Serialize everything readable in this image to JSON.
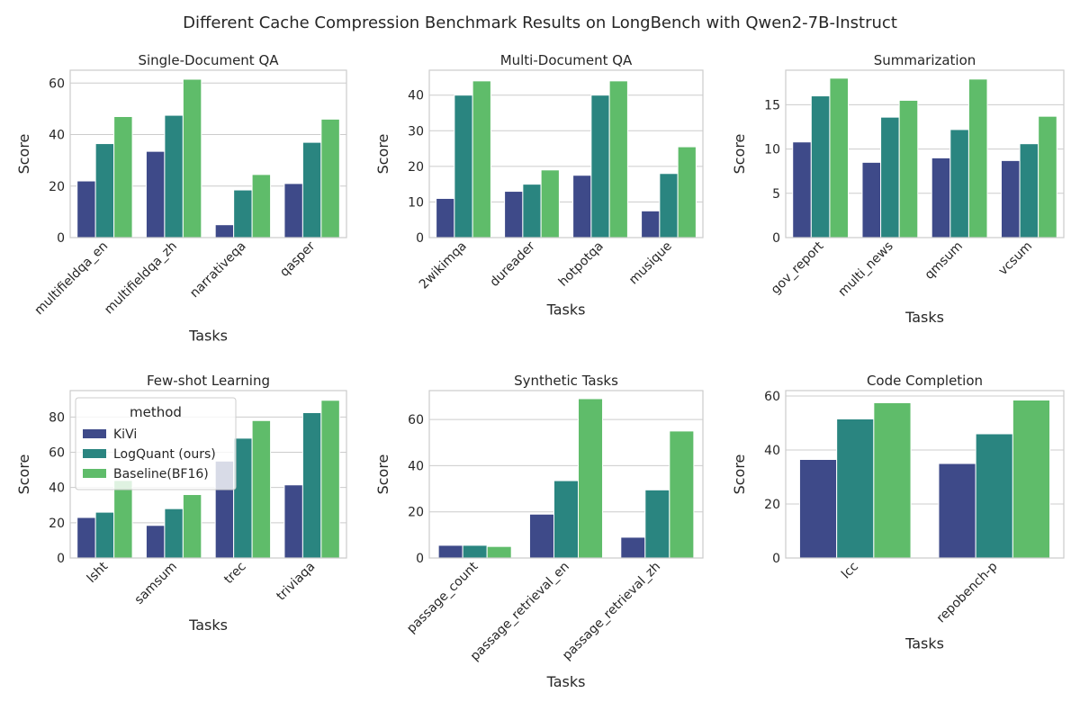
{
  "title": "Different Cache Compression Benchmark Results on LongBench with Qwen2-7B-Instruct",
  "colors": {
    "KiVi": "#3e4a89",
    "LogQuant (ours)": "#2a8580",
    "Baseline(BF16)": "#5fbc6a"
  },
  "legend": {
    "title": "method",
    "placement": "upper-left of Few-shot Learning panel"
  },
  "chart_data": [
    {
      "type": "bar",
      "title": "Single-Document QA",
      "xlabel": "Tasks",
      "ylabel": "Score",
      "ylim": [
        0,
        65
      ],
      "yticks": [
        0,
        20,
        40,
        60
      ],
      "grid": true,
      "categories": [
        "multifieldqa_en",
        "multifieldqa_zh",
        "narrativeqa",
        "qasper"
      ],
      "series": [
        {
          "name": "KiVi",
          "values": [
            22,
            33.5,
            5,
            21
          ]
        },
        {
          "name": "LogQuant (ours)",
          "values": [
            36.5,
            47.5,
            18.5,
            37
          ]
        },
        {
          "name": "Baseline(BF16)",
          "values": [
            47,
            61.5,
            24.5,
            46
          ]
        }
      ]
    },
    {
      "type": "bar",
      "title": "Multi-Document QA",
      "xlabel": "Tasks",
      "ylabel": "Score",
      "ylim": [
        0,
        47
      ],
      "yticks": [
        0,
        10,
        20,
        30,
        40
      ],
      "grid": true,
      "categories": [
        "2wikimqa",
        "dureader",
        "hotpotqa",
        "musique"
      ],
      "series": [
        {
          "name": "KiVi",
          "values": [
            11,
            13,
            17.5,
            7.5
          ]
        },
        {
          "name": "LogQuant (ours)",
          "values": [
            40,
            15,
            40,
            18
          ]
        },
        {
          "name": "Baseline(BF16)",
          "values": [
            44,
            19,
            44,
            25.5
          ]
        }
      ]
    },
    {
      "type": "bar",
      "title": "Summarization",
      "xlabel": "Tasks",
      "ylabel": "Score",
      "ylim": [
        0,
        18.9
      ],
      "yticks": [
        0,
        5,
        10,
        15
      ],
      "grid": true,
      "categories": [
        "gov_report",
        "multi_news",
        "qmsum",
        "vcsum"
      ],
      "series": [
        {
          "name": "KiVi",
          "values": [
            10.8,
            8.5,
            9,
            8.7
          ]
        },
        {
          "name": "LogQuant (ours)",
          "values": [
            16,
            13.6,
            12.2,
            10.6
          ]
        },
        {
          "name": "Baseline(BF16)",
          "values": [
            18,
            15.5,
            17.9,
            13.7
          ]
        }
      ]
    },
    {
      "type": "bar",
      "title": "Few-shot Learning",
      "xlabel": "Tasks",
      "ylabel": "Score",
      "ylim": [
        0,
        95
      ],
      "yticks": [
        0,
        20,
        40,
        60,
        80
      ],
      "grid": true,
      "categories": [
        "lsht",
        "samsum",
        "trec",
        "triviaqa"
      ],
      "series": [
        {
          "name": "KiVi",
          "values": [
            23,
            18.5,
            55,
            41.5
          ]
        },
        {
          "name": "LogQuant (ours)",
          "values": [
            26,
            28,
            68,
            82.5
          ]
        },
        {
          "name": "Baseline(BF16)",
          "values": [
            44,
            36,
            78,
            89.5
          ]
        }
      ]
    },
    {
      "type": "bar",
      "title": "Synthetic Tasks",
      "xlabel": "Tasks",
      "ylabel": "Score",
      "ylim": [
        0,
        72.5
      ],
      "yticks": [
        0,
        20,
        40,
        60
      ],
      "grid": true,
      "categories": [
        "passage_count",
        "passage_retrieval_en",
        "passage_retrieval_zh"
      ],
      "series": [
        {
          "name": "KiVi",
          "values": [
            5.5,
            19,
            9
          ]
        },
        {
          "name": "LogQuant (ours)",
          "values": [
            5.5,
            33.5,
            29.5
          ]
        },
        {
          "name": "Baseline(BF16)",
          "values": [
            5,
            69,
            55
          ]
        }
      ]
    },
    {
      "type": "bar",
      "title": "Code Completion",
      "xlabel": "Tasks",
      "ylabel": "Score",
      "ylim": [
        0,
        62
      ],
      "yticks": [
        0,
        20,
        40,
        60
      ],
      "grid": true,
      "categories": [
        "lcc",
        "repobench-p"
      ],
      "series": [
        {
          "name": "KiVi",
          "values": [
            36.5,
            35
          ]
        },
        {
          "name": "LogQuant (ours)",
          "values": [
            51.5,
            46
          ]
        },
        {
          "name": "Baseline(BF16)",
          "values": [
            57.5,
            58.5
          ]
        }
      ]
    }
  ]
}
